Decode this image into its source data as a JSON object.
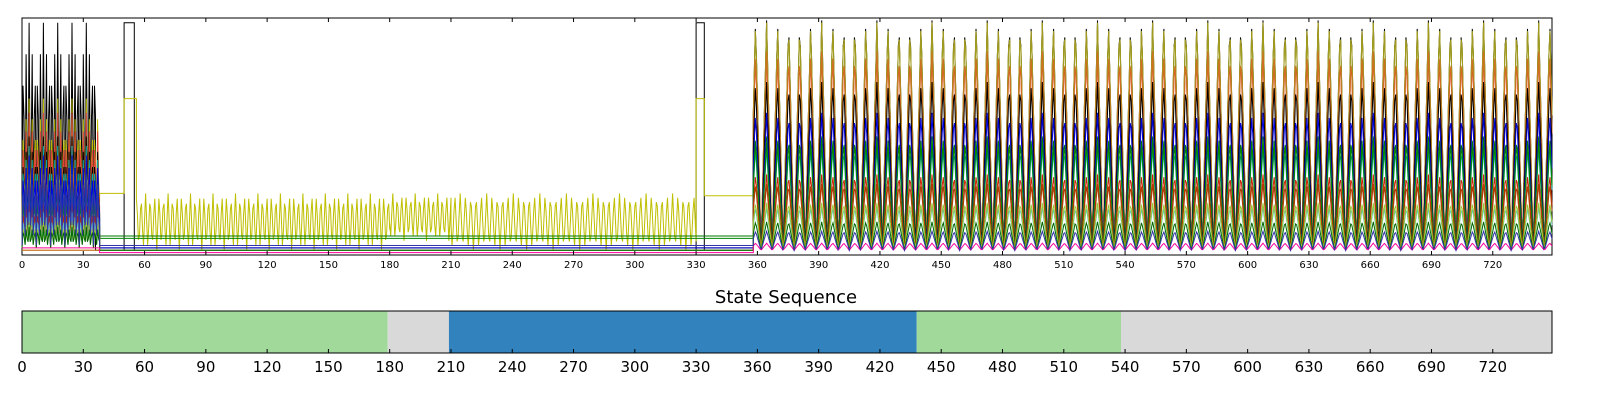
{
  "top_chart": {
    "type": "line",
    "title": "",
    "xlabel": "",
    "ylabel": "",
    "xlim": [
      0,
      749
    ],
    "ylim": [
      0,
      1
    ],
    "xticks": [
      0,
      30,
      60,
      90,
      120,
      150,
      180,
      210,
      240,
      270,
      300,
      330,
      360,
      390,
      420,
      450,
      480,
      510,
      540,
      570,
      600,
      630,
      660,
      690,
      720
    ],
    "grid": false,
    "series": [
      {
        "color": "#000000",
        "phases": [
          [
            0,
            36,
            0.98,
            0.05,
            1.4
          ],
          [
            36,
            50,
            0.02,
            0.0,
            1
          ],
          [
            50,
            55,
            0.98,
            0.0,
            1
          ],
          [
            55,
            330,
            0.02,
            0.0,
            1
          ],
          [
            330,
            334,
            0.98,
            0.0,
            1
          ],
          [
            334,
            358,
            0.02,
            0.0,
            1
          ],
          [
            358,
            749,
            0.99,
            0.02,
            5.4
          ]
        ]
      },
      {
        "color": "#bfbf00",
        "phases": [
          [
            0,
            38,
            0.66,
            0.05,
            1.4
          ],
          [
            38,
            50,
            0.26,
            0.0,
            1
          ],
          [
            50,
            56,
            0.66,
            0.0,
            1
          ],
          [
            56,
            180,
            0.26,
            0.02,
            2.2
          ],
          [
            180,
            210,
            0.26,
            0.06,
            2.2
          ],
          [
            210,
            330,
            0.26,
            0.02,
            2.6
          ],
          [
            330,
            334,
            0.66,
            0.0,
            1
          ],
          [
            334,
            358,
            0.25,
            0.0,
            1
          ],
          [
            358,
            749,
            0.98,
            0.02,
            5.4
          ]
        ]
      },
      {
        "color": "#a09a20",
        "phases": [
          [
            0,
            358,
            0.02,
            0.0,
            1
          ],
          [
            358,
            749,
            0.98,
            0.02,
            5.4
          ]
        ]
      },
      {
        "color": "#e04040",
        "phases": [
          [
            0,
            38,
            0.6,
            0.05,
            1.4
          ],
          [
            38,
            358,
            0.02,
            0.0,
            1
          ],
          [
            358,
            749,
            0.85,
            0.02,
            5.4
          ]
        ]
      },
      {
        "color": "#d07020",
        "phases": [
          [
            0,
            358,
            0.02,
            0.0,
            1
          ],
          [
            358,
            749,
            0.86,
            0.02,
            5.4
          ]
        ]
      },
      {
        "color": "#000000",
        "phases": [
          [
            0,
            38,
            0.5,
            0.05,
            1.4
          ],
          [
            38,
            358,
            0.03,
            0.0,
            1
          ],
          [
            358,
            749,
            0.73,
            0.02,
            5.4
          ]
        ]
      },
      {
        "color": "#00aaaa",
        "phases": [
          [
            0,
            38,
            0.46,
            0.05,
            1.4
          ],
          [
            38,
            358,
            0.02,
            0.0,
            1
          ],
          [
            358,
            749,
            0.45,
            0.02,
            5.4
          ]
        ]
      },
      {
        "color": "#0000dd",
        "phases": [
          [
            0,
            38,
            0.42,
            0.05,
            1.4
          ],
          [
            38,
            358,
            0.03,
            0.0,
            1
          ],
          [
            358,
            749,
            0.6,
            0.02,
            5.4
          ]
        ]
      },
      {
        "color": "#007700",
        "phases": [
          [
            0,
            38,
            0.31,
            0.04,
            1.4
          ],
          [
            38,
            358,
            0.08,
            0.0,
            1
          ],
          [
            358,
            749,
            0.5,
            0.02,
            5.4
          ]
        ]
      },
      {
        "color": "#008800",
        "phases": [
          [
            0,
            38,
            0.27,
            0.04,
            1.4
          ],
          [
            38,
            358,
            0.07,
            0.0,
            1
          ],
          [
            358,
            749,
            0.48,
            0.02,
            5.4
          ]
        ]
      },
      {
        "color": "#cc2200",
        "phases": [
          [
            0,
            38,
            0.22,
            0.03,
            1.4
          ],
          [
            38,
            358,
            0.02,
            0.0,
            1
          ],
          [
            358,
            749,
            0.34,
            0.02,
            5.4
          ]
        ]
      },
      {
        "color": "#aa4400",
        "phases": [
          [
            0,
            38,
            0.2,
            0.03,
            1.4
          ],
          [
            38,
            358,
            0.02,
            0.0,
            1
          ],
          [
            358,
            749,
            0.3,
            0.02,
            5.4
          ]
        ]
      },
      {
        "color": "#60c0c0",
        "phases": [
          [
            0,
            38,
            0.18,
            0.03,
            1.4
          ],
          [
            38,
            358,
            0.02,
            0.0,
            1
          ],
          [
            358,
            749,
            0.2,
            0.02,
            5.4
          ]
        ]
      },
      {
        "color": "#99cc33",
        "phases": [
          [
            0,
            38,
            0.14,
            0.03,
            1.4
          ],
          [
            38,
            358,
            0.02,
            0.0,
            1
          ],
          [
            358,
            749,
            0.22,
            0.02,
            5.4
          ]
        ]
      },
      {
        "color": "#006600",
        "phases": [
          [
            0,
            38,
            0.12,
            0.03,
            1.4
          ],
          [
            38,
            358,
            0.02,
            0.0,
            1
          ],
          [
            358,
            749,
            0.14,
            0.02,
            5.4
          ]
        ]
      },
      {
        "color": "#ff0099",
        "phases": [
          [
            0,
            38,
            0.03,
            0.0,
            1
          ],
          [
            38,
            358,
            0.01,
            0.0,
            1
          ],
          [
            358,
            749,
            0.05,
            0.02,
            5.4
          ]
        ]
      },
      {
        "color": "#3333aa",
        "phases": [
          [
            0,
            38,
            0.34,
            0.04,
            1.4
          ],
          [
            38,
            358,
            0.04,
            0.0,
            1
          ],
          [
            358,
            749,
            0.1,
            0.02,
            5.4
          ]
        ]
      }
    ]
  },
  "bottom_chart": {
    "type": "bar",
    "title": "State Sequence",
    "xlim": [
      0,
      749
    ],
    "xticks": [
      0,
      30,
      60,
      90,
      120,
      150,
      180,
      210,
      240,
      270,
      300,
      330,
      360,
      390,
      420,
      450,
      480,
      510,
      540,
      570,
      600,
      630,
      660,
      690,
      720
    ],
    "segments": [
      {
        "start": 0,
        "end": 179,
        "color": "#a1d99b"
      },
      {
        "start": 179,
        "end": 209,
        "color": "#d9d9d9"
      },
      {
        "start": 209,
        "end": 438,
        "color": "#3182bd"
      },
      {
        "start": 438,
        "end": 538,
        "color": "#a1d99b"
      },
      {
        "start": 538,
        "end": 749,
        "color": "#d9d9d9"
      }
    ]
  }
}
